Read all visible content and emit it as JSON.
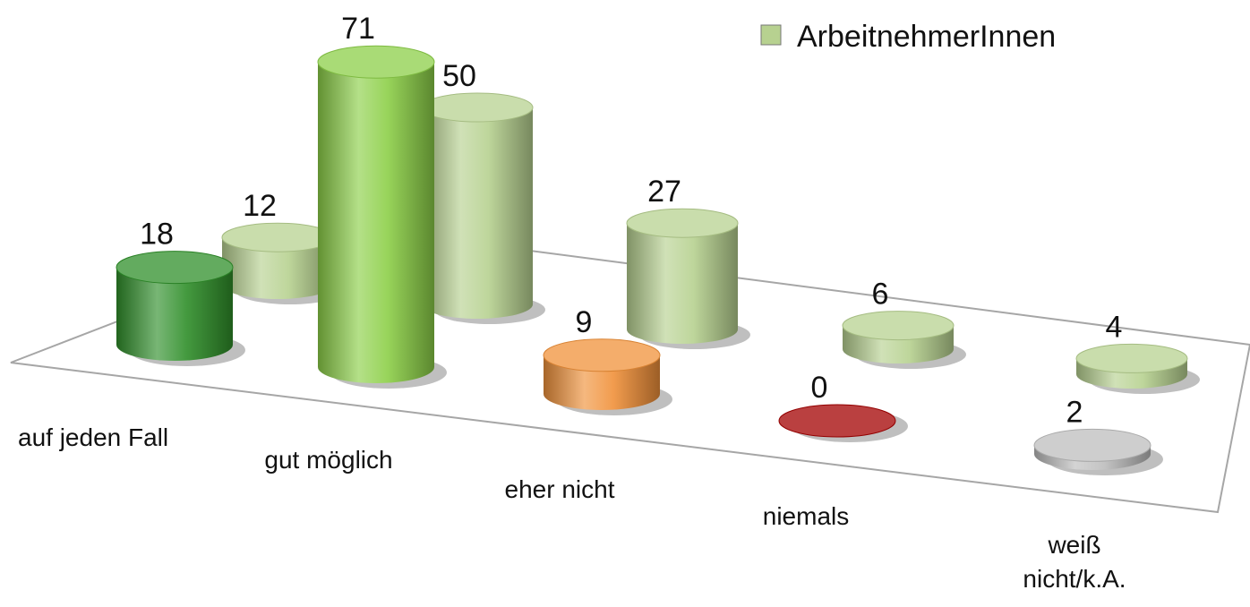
{
  "chart_data": {
    "type": "bar3d",
    "categories": [
      "auf jeden Fall",
      "gut möglich",
      "eher nicht",
      "niemals",
      "weiß nicht/k.A."
    ],
    "series": [
      {
        "colors": [
          "#2f8f2a",
          "#8ccf48",
          "#f0913a",
          "#a30000",
          "#bdbdbd"
        ],
        "values": [
          18,
          71,
          9,
          0,
          2
        ]
      },
      {
        "name": "ArbeitnehmerInnen",
        "color": "#b7d190",
        "values": [
          12,
          50,
          27,
          6,
          4
        ]
      }
    ]
  }
}
